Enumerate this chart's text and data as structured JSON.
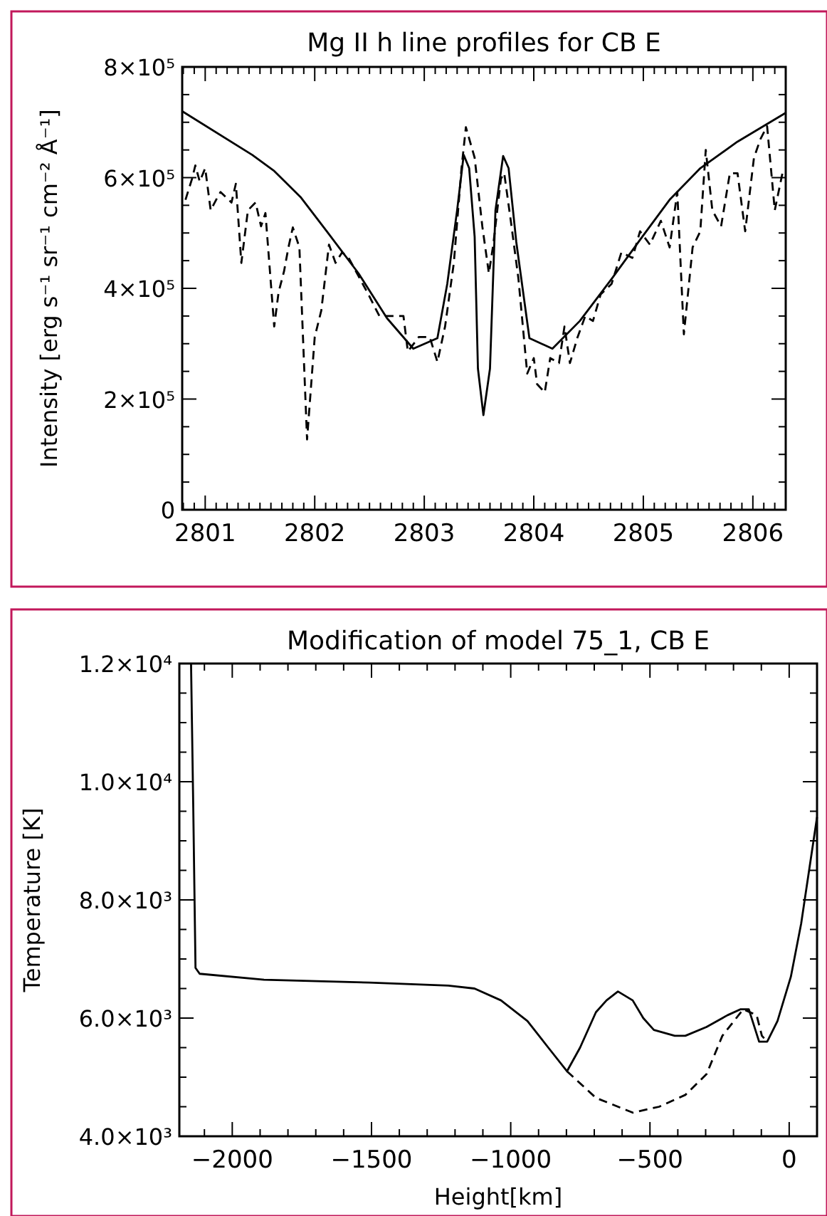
{
  "chart_data": [
    {
      "type": "line",
      "title": "Mg II h line profiles for CB E",
      "ylabel": "Intensity [erg s⁻¹ sr⁻¹ cm⁻² Å⁻¹]",
      "xlim": [
        2800.79,
        2806.3
      ],
      "ylim": [
        0,
        800000
      ],
      "xticks": [
        {
          "value": 2800.8,
          "label": null
        },
        {
          "value": 2800.9,
          "label": null
        },
        2801,
        {
          "value": 2801.1,
          "label": null
        },
        {
          "value": 2801.2,
          "label": null
        },
        {
          "value": 2801.3,
          "label": null
        },
        {
          "value": 2801.4,
          "label": null
        },
        {
          "value": 2801.5,
          "label": null
        },
        {
          "value": 2801.6,
          "label": null
        },
        {
          "value": 2801.7,
          "label": null
        },
        {
          "value": 2801.8,
          "label": null
        },
        {
          "value": 2801.9,
          "label": null
        },
        2802,
        {
          "value": 2802.1,
          "label": null
        },
        {
          "value": 2802.2,
          "label": null
        },
        {
          "value": 2802.3,
          "label": null
        },
        {
          "value": 2802.4,
          "label": null
        },
        {
          "value": 2802.5,
          "label": null
        },
        {
          "value": 2802.6,
          "label": null
        },
        {
          "value": 2802.7,
          "label": null
        },
        {
          "value": 2802.8,
          "label": null
        },
        {
          "value": 2802.9,
          "label": null
        },
        2803,
        {
          "value": 2803.1,
          "label": null
        },
        {
          "value": 2803.2,
          "label": null
        },
        {
          "value": 2803.3,
          "label": null
        },
        {
          "value": 2803.4,
          "label": null
        },
        {
          "value": 2803.5,
          "label": null
        },
        {
          "value": 2803.6,
          "label": null
        },
        {
          "value": 2803.7,
          "label": null
        },
        {
          "value": 2803.8,
          "label": null
        },
        {
          "value": 2803.9,
          "label": null
        },
        2804,
        {
          "value": 2804.1,
          "label": null
        },
        {
          "value": 2804.2,
          "label": null
        },
        {
          "value": 2804.3,
          "label": null
        },
        {
          "value": 2804.4,
          "label": null
        },
        {
          "value": 2804.5,
          "label": null
        },
        {
          "value": 2804.6,
          "label": null
        },
        {
          "value": 2804.7,
          "label": null
        },
        {
          "value": 2804.8,
          "label": null
        },
        {
          "value": 2804.9,
          "label": null
        },
        2805,
        {
          "value": 2805.1,
          "label": null
        },
        {
          "value": 2805.2,
          "label": null
        },
        {
          "value": 2805.3,
          "label": null
        },
        {
          "value": 2805.4,
          "label": null
        },
        {
          "value": 2805.5,
          "label": null
        },
        {
          "value": 2805.6,
          "label": null
        },
        {
          "value": 2805.7,
          "label": null
        },
        {
          "value": 2805.8,
          "label": null
        },
        {
          "value": 2805.9,
          "label": null
        },
        2806,
        {
          "value": 2806.1,
          "label": null
        },
        {
          "value": 2806.2,
          "label": null
        }
      ],
      "yticks": [
        0,
        {
          "value": 50000,
          "label": null
        },
        {
          "value": 100000,
          "label": null
        },
        {
          "value": 150000,
          "label": null
        },
        {
          "value": 200000,
          "label": "2×10⁵"
        },
        {
          "value": 250000,
          "label": null
        },
        {
          "value": 300000,
          "label": null
        },
        {
          "value": 350000,
          "label": null
        },
        {
          "value": 400000,
          "label": "4×10⁵"
        },
        {
          "value": 450000,
          "label": null
        },
        {
          "value": 500000,
          "label": null
        },
        {
          "value": 550000,
          "label": null
        },
        {
          "value": 600000,
          "label": "6×10⁵"
        },
        {
          "value": 650000,
          "label": null
        },
        {
          "value": 700000,
          "label": null
        },
        {
          "value": 750000,
          "label": null
        },
        {
          "value": 800000,
          "label": "8×10⁵"
        }
      ],
      "series": [
        {
          "color": "#000000",
          "line_style": "solid",
          "x": [
            2800.79,
            2801.43,
            2801.63,
            2801.87,
            2802.11,
            2802.4,
            2802.66,
            2802.9,
            2803.12,
            2803.21,
            2803.3,
            2803.36,
            2803.41,
            2803.46,
            2803.49,
            2803.54,
            2803.6,
            2803.65,
            2803.72,
            2803.77,
            2803.84,
            2803.96,
            2804.17,
            2804.42,
            2804.71,
            2804.99,
            2805.24,
            2805.52,
            2805.86,
            2806.3
          ],
          "values": [
            720000,
            641000,
            612000,
            565000,
            503000,
            427000,
            346000,
            291000,
            310000,
            408000,
            541000,
            641000,
            617000,
            493000,
            255000,
            171000,
            255000,
            541000,
            639000,
            617000,
            484000,
            310000,
            291000,
            341000,
            417000,
            493000,
            560000,
            617000,
            665000,
            717000
          ]
        },
        {
          "color": "#000000",
          "line_style": "dashed",
          "x": [
            2800.82,
            2800.88,
            2800.91,
            2800.95,
            2801,
            2801.05,
            2801.1,
            2801.14,
            2801.24,
            2801.28,
            2801.33,
            2801.39,
            2801.46,
            2801.51,
            2801.55,
            2801.63,
            2801.67,
            2801.72,
            2801.76,
            2801.8,
            2801.86,
            2801.93,
            2802,
            2802.06,
            2802.13,
            2802.19,
            2802.25,
            2802.31,
            2802.4,
            2802.49,
            2802.59,
            2802.69,
            2802.81,
            2802.85,
            2802.95,
            2803.05,
            2803.12,
            2803.19,
            2803.27,
            2803.34,
            2803.38,
            2803.46,
            2803.53,
            2803.59,
            2803.63,
            2803.7,
            2803.73,
            2803.79,
            2803.86,
            2803.94,
            2804,
            2804.03,
            2804.1,
            2804.15,
            2804.23,
            2804.28,
            2804.33,
            2804.4,
            2804.47,
            2804.54,
            2804.61,
            2804.71,
            2804.8,
            2804.9,
            2804.97,
            2805.06,
            2805.16,
            2805.24,
            2805.31,
            2805.37,
            2805.45,
            2805.52,
            2805.57,
            2805.63,
            2805.71,
            2805.79,
            2805.86,
            2805.93,
            2806.01,
            2806.07,
            2806.13,
            2806.2,
            2806.27
          ],
          "values": [
            560000,
            598000,
            622000,
            593000,
            617000,
            541000,
            560000,
            574000,
            555000,
            589000,
            446000,
            541000,
            555000,
            512000,
            536000,
            331000,
            393000,
            431000,
            474000,
            510000,
            474000,
            127000,
            312000,
            360000,
            479000,
            446000,
            465000,
            455000,
            422000,
            389000,
            350000,
            350000,
            350000,
            286000,
            312000,
            312000,
            267000,
            331000,
            446000,
            617000,
            691000,
            636000,
            512000,
            427000,
            479000,
            598000,
            608000,
            522000,
            417000,
            246000,
            274000,
            227000,
            212000,
            274000,
            265000,
            331000,
            265000,
            312000,
            350000,
            341000,
            389000,
            408000,
            465000,
            455000,
            503000,
            479000,
            522000,
            474000,
            574000,
            317000,
            474000,
            503000,
            650000,
            541000,
            512000,
            608000,
            608000,
            503000,
            636000,
            670000,
            693000,
            541000,
            608000
          ]
        }
      ]
    },
    {
      "type": "line",
      "title": "Modification of model 75_1, CB E",
      "xlabel": "Height[km]",
      "ylabel": "Temperature [K]",
      "xlim": [
        -2190,
        100
      ],
      "ylim": [
        4000,
        12000
      ],
      "xticks": [
        {
          "value": -2100,
          "label": null
        },
        {
          "value": -2000,
          "label": "−2000"
        },
        {
          "value": -1900,
          "label": null
        },
        {
          "value": -1800,
          "label": null
        },
        {
          "value": -1700,
          "label": null
        },
        {
          "value": -1600,
          "label": null
        },
        {
          "value": -1500,
          "label": "−1500"
        },
        {
          "value": -1400,
          "label": null
        },
        {
          "value": -1300,
          "label": null
        },
        {
          "value": -1200,
          "label": null
        },
        {
          "value": -1100,
          "label": null
        },
        {
          "value": -1000,
          "label": "−1000"
        },
        {
          "value": -900,
          "label": null
        },
        {
          "value": -800,
          "label": null
        },
        {
          "value": -700,
          "label": null
        },
        {
          "value": -600,
          "label": null
        },
        {
          "value": -500,
          "label": "−500"
        },
        {
          "value": -400,
          "label": null
        },
        {
          "value": -300,
          "label": null
        },
        {
          "value": -200,
          "label": null
        },
        {
          "value": -100,
          "label": null
        },
        0
      ],
      "yticks": [
        {
          "value": 4000,
          "label": "4.0×10³"
        },
        {
          "value": 4500,
          "label": null
        },
        {
          "value": 5000,
          "label": null
        },
        {
          "value": 5500,
          "label": null
        },
        {
          "value": 6000,
          "label": "6.0×10³"
        },
        {
          "value": 6500,
          "label": null
        },
        {
          "value": 7000,
          "label": null
        },
        {
          "value": 7500,
          "label": null
        },
        {
          "value": 8000,
          "label": "8.0×10³"
        },
        {
          "value": 8500,
          "label": null
        },
        {
          "value": 9000,
          "label": null
        },
        {
          "value": 9500,
          "label": null
        },
        {
          "value": 10000,
          "label": "1.0×10⁴"
        },
        {
          "value": 10500,
          "label": null
        },
        {
          "value": 11000,
          "label": null
        },
        {
          "value": 11500,
          "label": null
        },
        {
          "value": 12000,
          "label": "1.2×10⁴"
        }
      ],
      "series": [
        {
          "color": "#000000",
          "line_style": "solid",
          "x": [
            -2148,
            -2140,
            -2132,
            -2117,
            -1886,
            -1508,
            -1224,
            -1130,
            -1035,
            -940,
            -865,
            -798,
            -751,
            -694,
            -656,
            -615,
            -562,
            -524,
            -486,
            -411,
            -373,
            -297,
            -221,
            -174,
            -145,
            -108,
            -79,
            -42,
            6,
            43,
            100
          ],
          "values": [
            12000,
            9550,
            6850,
            6750,
            6650,
            6600,
            6550,
            6500,
            6300,
            5950,
            5500,
            5100,
            5500,
            6100,
            6300,
            6450,
            6300,
            6000,
            5800,
            5700,
            5700,
            5850,
            6050,
            6150,
            6150,
            5600,
            5600,
            5950,
            6700,
            7600,
            9400
          ]
        },
        {
          "color": "#000000",
          "line_style": "dashed",
          "x": [
            -798,
            -694,
            -562,
            -467,
            -373,
            -297,
            -240,
            -165,
            -117,
            -98,
            -79
          ],
          "values": [
            5100,
            4650,
            4400,
            4500,
            4700,
            5050,
            5700,
            6150,
            6050,
            5700,
            5600
          ]
        }
      ]
    }
  ]
}
